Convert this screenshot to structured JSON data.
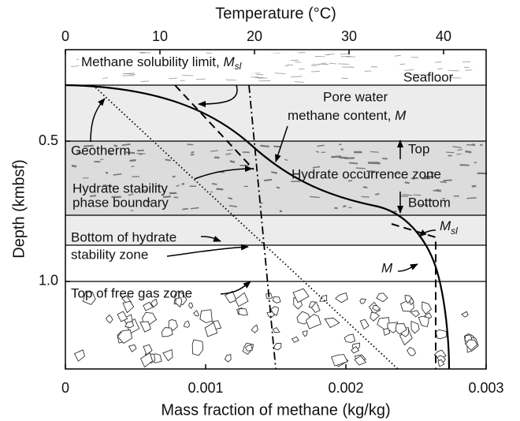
{
  "axes": {
    "x_title": "Mass fraction of methane (kg/kg)",
    "xlim": [
      0,
      0.003
    ],
    "xticks": [
      0,
      0.001,
      0.002,
      0.003
    ],
    "x2_title": "Temperature (°C)",
    "x2lim": [
      0,
      44.5
    ],
    "x2ticks": [
      0,
      10,
      20,
      30,
      40
    ],
    "y_title": "Depth (kmbsf)",
    "ylim": [
      0.174,
      1.312
    ],
    "yticks": [
      0.5,
      {
        "value": 1,
        "label": "1.0"
      }
    ]
  },
  "labels": {
    "solubility": {
      "text": "Methane solubility limit, ",
      "symbol": "M",
      "subscript": "sl"
    },
    "seafloor": "Seafloor",
    "pore_water": {
      "line1": "Pore water",
      "line2": "methane content, ",
      "symbol": "M"
    },
    "geotherm": "Geotherm",
    "top": "Top",
    "occurrence": "Hydrate occurrence zone",
    "phase": {
      "line1": "Hydrate stability",
      "line2": "phase boundary"
    },
    "bottom": "Bottom",
    "msl": {
      "symbol": "M",
      "subscript": "sl"
    },
    "bottom_stability": {
      "line1": "Bottom of hydrate",
      "line2": "stability zone"
    },
    "m": "M",
    "free_gas": "Top of free gas zone"
  }
}
